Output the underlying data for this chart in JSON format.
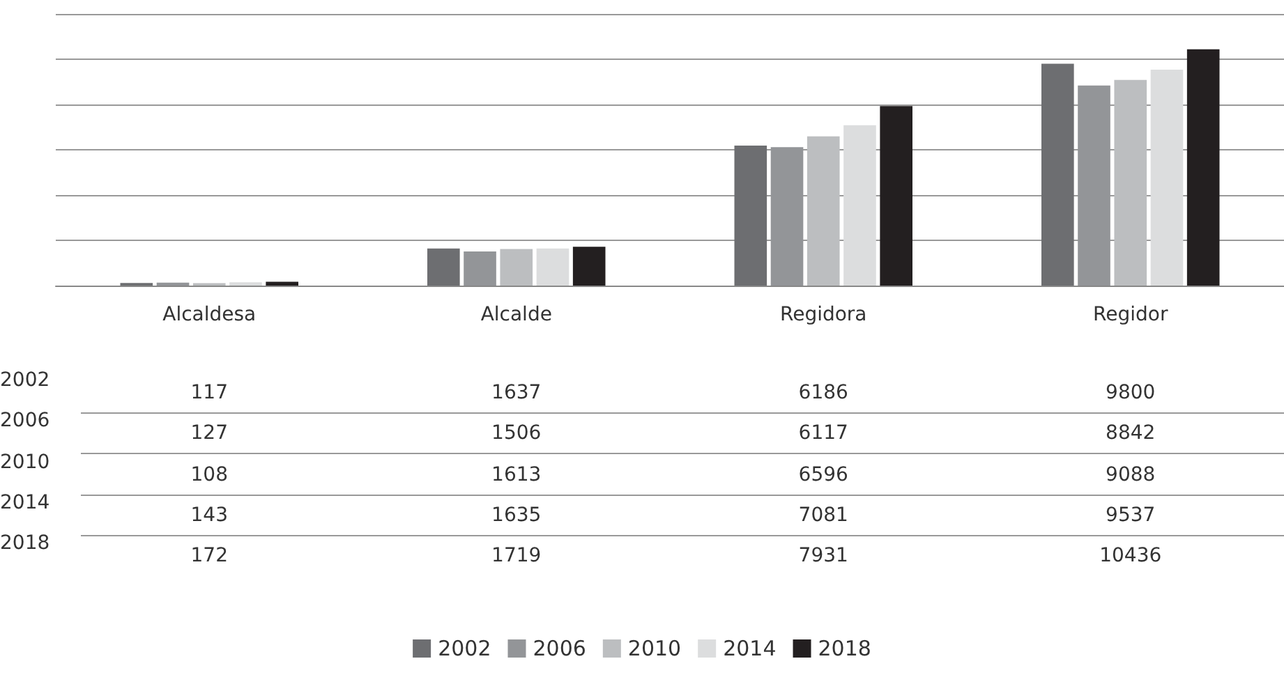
{
  "chart_data": {
    "type": "bar",
    "categories": [
      "Alcaldesa",
      "Alcalde",
      "Regidora",
      "Regidor"
    ],
    "series": [
      {
        "name": "2002",
        "color": "#6d6e71",
        "values": [
          117,
          1637,
          6186,
          9800
        ]
      },
      {
        "name": "2006",
        "color": "#939598",
        "values": [
          127,
          1506,
          6117,
          8842
        ]
      },
      {
        "name": "2010",
        "color": "#bcbec0",
        "values": [
          108,
          1613,
          6596,
          9088
        ]
      },
      {
        "name": "2014",
        "color": "#dcddde",
        "values": [
          143,
          1635,
          7081,
          9537
        ]
      },
      {
        "name": "2018",
        "color": "#231f20",
        "values": [
          172,
          1719,
          7931,
          10436
        ]
      }
    ],
    "ylim": [
      0,
      12000
    ],
    "yticks": [
      0,
      2000,
      4000,
      6000,
      8000,
      10000,
      12000
    ],
    "tick_labels": "x",
    "grid": "y",
    "legend": "bottom",
    "data_labels": true
  }
}
